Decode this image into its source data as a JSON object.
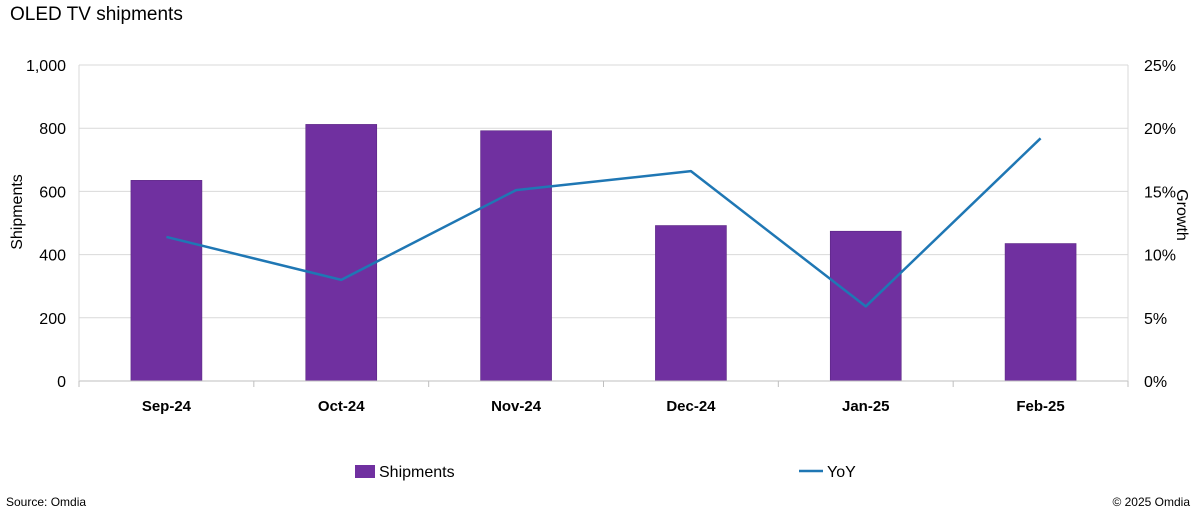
{
  "chart_data": {
    "type": "bar",
    "title": "OLED TV shipments",
    "categories": [
      "Sep-24",
      "Oct-24",
      "Nov-24",
      "Dec-24",
      "Jan-25",
      "Feb-25"
    ],
    "series": [
      {
        "name": "Shipments",
        "type": "bar",
        "axis": "left",
        "color": "#7030a0",
        "values": [
          635,
          812,
          792,
          492,
          474,
          435
        ]
      },
      {
        "name": "YoY",
        "type": "line",
        "axis": "right",
        "color": "#1f77b4",
        "values": [
          11.4,
          8.0,
          15.1,
          16.6,
          5.9,
          19.2
        ]
      }
    ],
    "ylabel": "Shipments",
    "ylim": [
      0,
      1000
    ],
    "yticks": [
      "0",
      "200",
      "400",
      "600",
      "800",
      "1,000"
    ],
    "y2label": "Growth",
    "y2lim": [
      0,
      25
    ],
    "y2ticks": [
      "0%",
      "5%",
      "10%",
      "15%",
      "20%",
      "25%"
    ],
    "grid": true,
    "legend": "bottom"
  },
  "footer": {
    "source": "Source: Omdia",
    "copyright": "© 2025 Omdia"
  }
}
